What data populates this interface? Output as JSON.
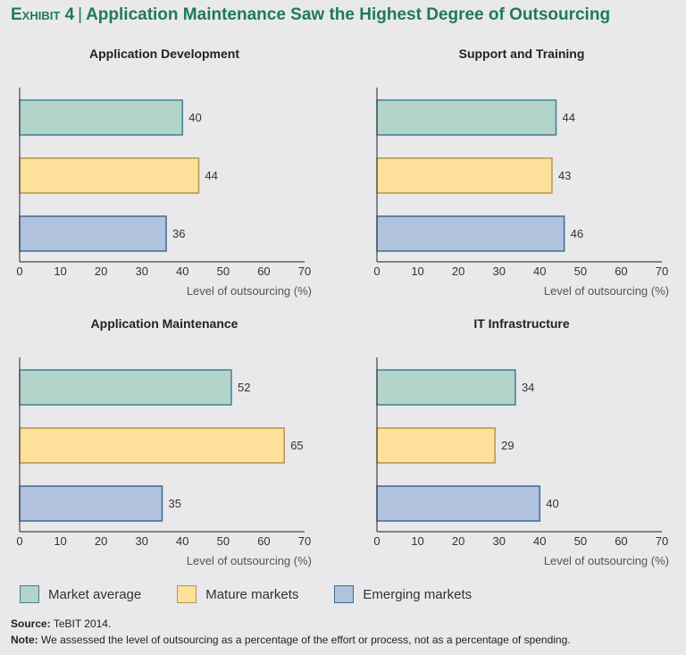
{
  "header": {
    "exhibit": "Exhibit 4",
    "title": "Application Maintenance Saw the Highest Degree of Outsourcing"
  },
  "colors": {
    "market_average": {
      "fill": "#b3d4c8",
      "stroke": "#3f7f93"
    },
    "mature_markets": {
      "fill": "#fde19a",
      "stroke": "#b5954a"
    },
    "emerging_markets": {
      "fill": "#b0c2dd",
      "stroke": "#3d6b98"
    },
    "title": "#1f7a57"
  },
  "chart_data": [
    {
      "type": "bar",
      "title": "Application Development",
      "series": [
        "Market average",
        "Mature markets",
        "Emerging markets"
      ],
      "values": [
        40,
        44,
        36
      ],
      "xlabel": "Level of outsourcing (%)",
      "xlim": [
        0,
        70
      ],
      "xticks": [
        0,
        10,
        20,
        30,
        40,
        50,
        60,
        70
      ]
    },
    {
      "type": "bar",
      "title": "Support and Training",
      "series": [
        "Market average",
        "Mature markets",
        "Emerging markets"
      ],
      "values": [
        44,
        43,
        46
      ],
      "xlabel": "Level of outsourcing (%)",
      "xlim": [
        0,
        70
      ],
      "xticks": [
        0,
        10,
        20,
        30,
        40,
        50,
        60,
        70
      ]
    },
    {
      "type": "bar",
      "title": "Application Maintenance",
      "series": [
        "Market average",
        "Mature markets",
        "Emerging markets"
      ],
      "values": [
        52,
        65,
        35
      ],
      "xlabel": "Level of outsourcing (%)",
      "xlim": [
        0,
        70
      ],
      "xticks": [
        0,
        10,
        20,
        30,
        40,
        50,
        60,
        70
      ]
    },
    {
      "type": "bar",
      "title": "IT Infrastructure",
      "series": [
        "Market average",
        "Mature markets",
        "Emerging markets"
      ],
      "values": [
        34,
        29,
        40
      ],
      "xlabel": "Level of outsourcing (%)",
      "xlim": [
        0,
        70
      ],
      "xticks": [
        0,
        10,
        20,
        30,
        40,
        50,
        60,
        70
      ]
    }
  ],
  "legend": [
    {
      "label": "Market average"
    },
    {
      "label": "Mature markets"
    },
    {
      "label": "Emerging markets"
    }
  ],
  "footer": {
    "source_label": "Source:",
    "source": "TeBIT 2014.",
    "note_label": "Note:",
    "note": "We assessed the level of outsourcing as a percentage of the effort or process, not as a percentage of spending."
  }
}
